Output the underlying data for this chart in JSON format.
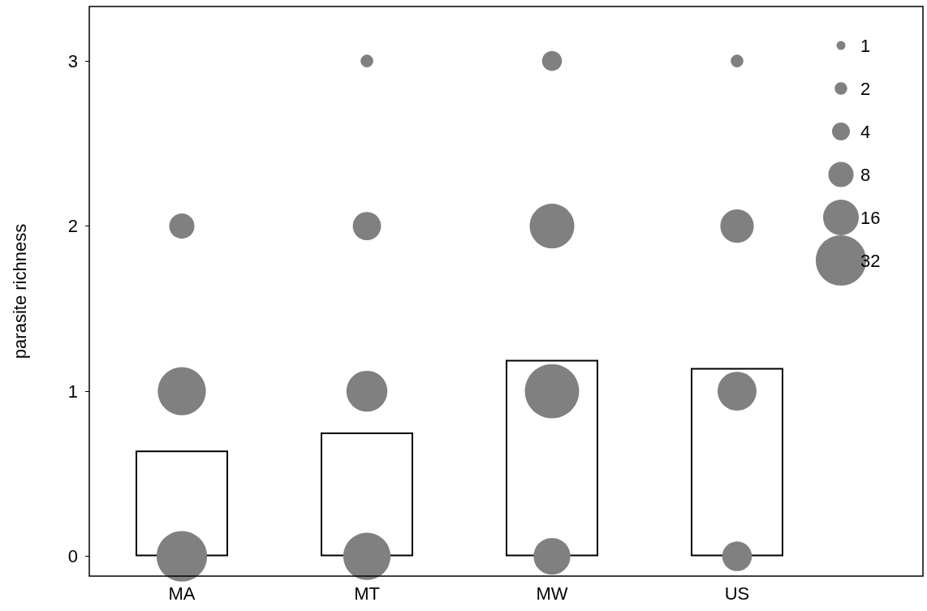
{
  "chart_data": {
    "type": "bar",
    "ylabel": "parasite richness",
    "categories": [
      "MA",
      "MT",
      "MW",
      "US"
    ],
    "ylim": [
      -0.12,
      3.33
    ],
    "yticks": [
      0,
      1,
      2,
      3
    ],
    "grid": false,
    "size_legend": [
      1,
      2,
      4,
      8,
      16,
      32
    ],
    "series": [
      {
        "color": "#ffffff",
        "values": [
          0.64,
          0.75,
          1.19,
          1.14
        ]
      },
      {
        "type": "bubble",
        "color": "#808080",
        "x": [
          "MA",
          "MA",
          "MA",
          "MT",
          "MT",
          "MT",
          "MT",
          "MW",
          "MW",
          "MW",
          "MW",
          "US",
          "US",
          "US",
          "US"
        ],
        "values": [
          0,
          1,
          2,
          0,
          1,
          2,
          3,
          0,
          1,
          2,
          3,
          0,
          1,
          2,
          3
        ],
        "sizes": [
          32,
          29,
          8,
          28,
          21,
          10,
          2,
          17,
          37,
          25,
          5,
          11,
          19,
          14,
          2
        ]
      }
    ]
  }
}
